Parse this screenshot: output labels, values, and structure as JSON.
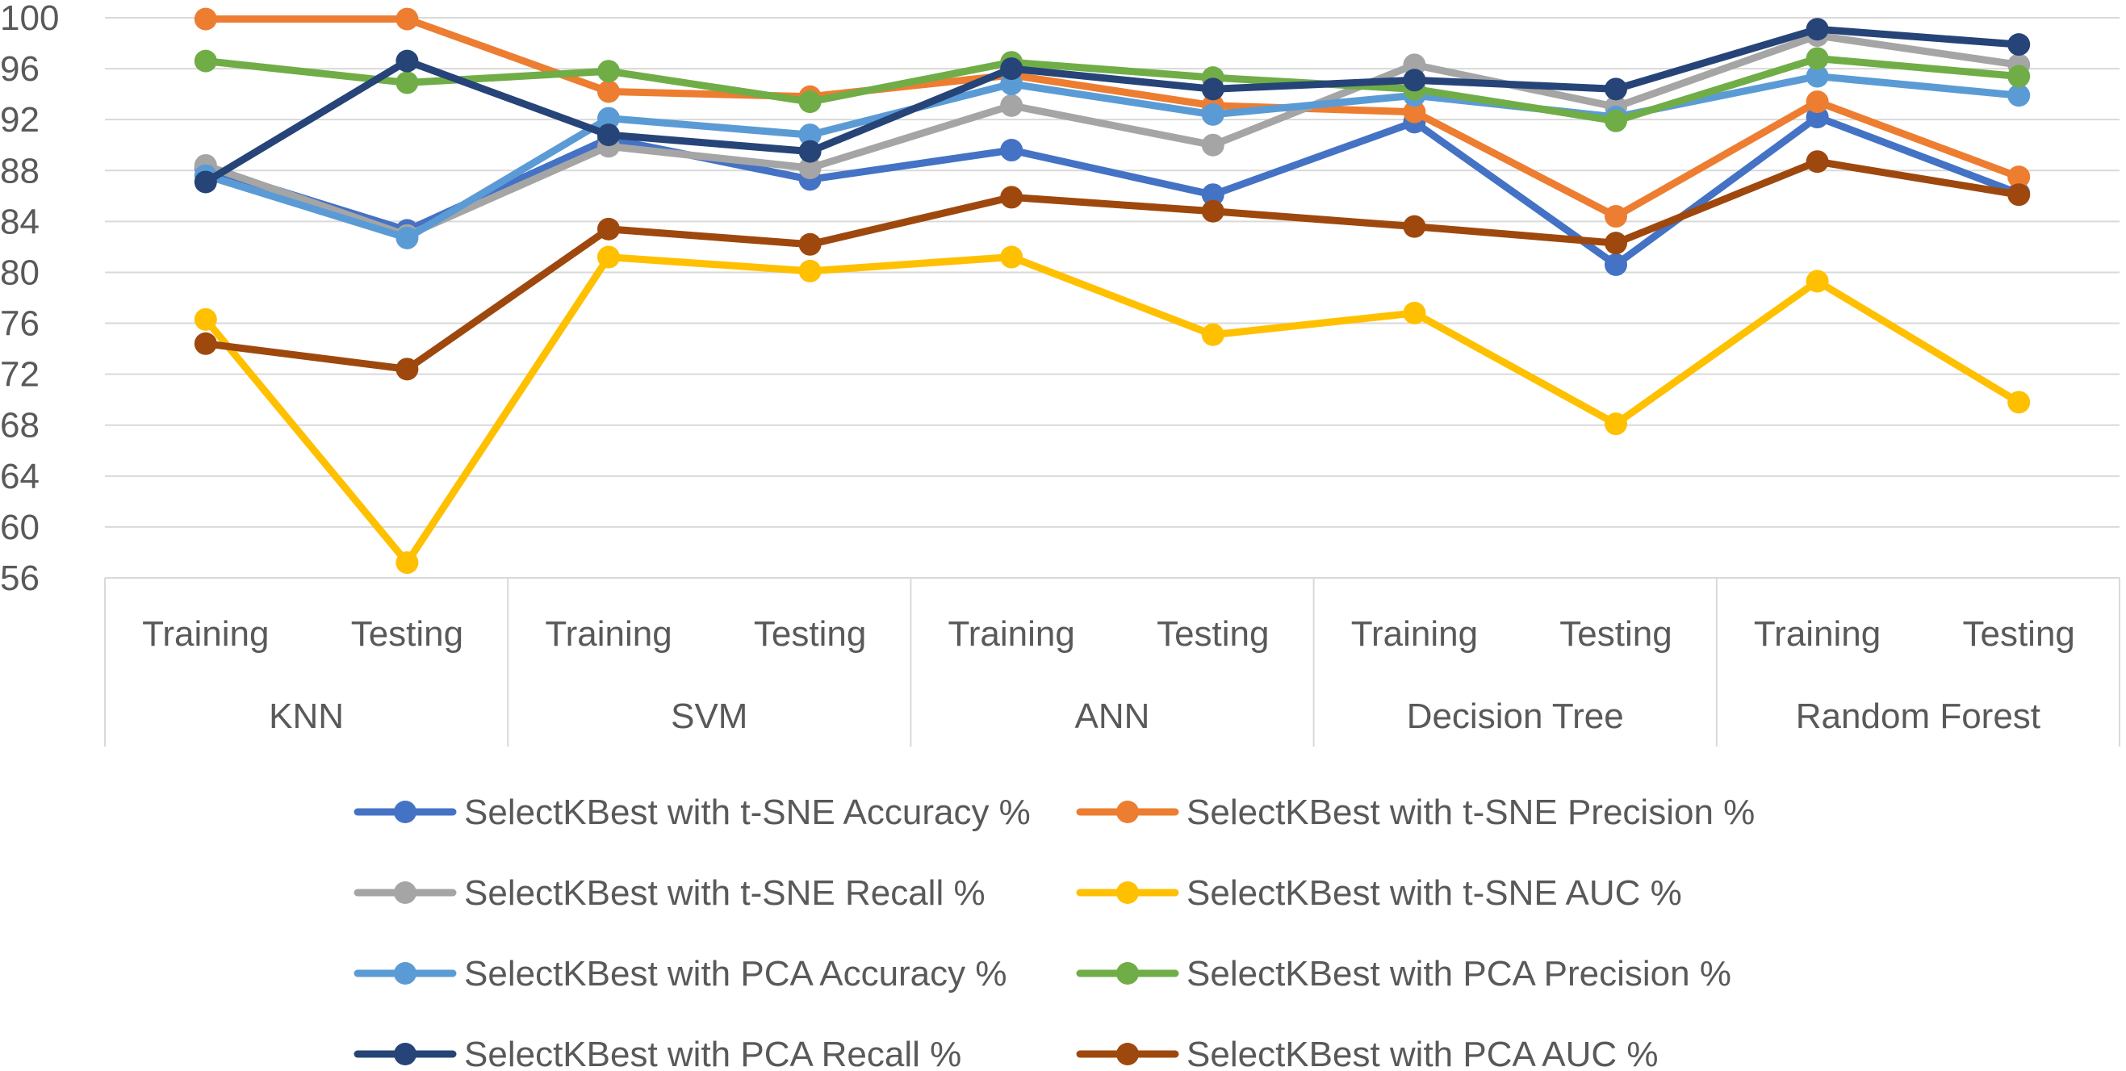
{
  "chart_data": {
    "type": "line",
    "title": "",
    "xlabel": "",
    "ylabel": "",
    "ylim": [
      56,
      100
    ],
    "yticks": [
      56,
      60,
      64,
      68,
      72,
      76,
      80,
      84,
      88,
      92,
      96,
      100
    ],
    "grid": "horizontal",
    "legend_position": "bottom",
    "groups": [
      "KNN",
      "SVM",
      "ANN",
      "Decision Tree",
      "Random Forest"
    ],
    "subcategories": [
      "Training",
      "Testing"
    ],
    "series": [
      {
        "name": "SelectKBest with t-SNE Accuracy %",
        "color": "#4472c4",
        "values": [
          88.2,
          83.3,
          90.5,
          87.3,
          89.6,
          86.1,
          91.8,
          80.6,
          92.2,
          86.2
        ]
      },
      {
        "name": "SelectKBest with t-SNE Precision %",
        "color": "#ed7d31",
        "values": [
          99.9,
          99.9,
          94.2,
          93.8,
          95.5,
          93.1,
          92.6,
          84.4,
          93.4,
          87.5
        ]
      },
      {
        "name": "SelectKBest with t-SNE Recall %",
        "color": "#a5a5a5",
        "values": [
          88.4,
          82.9,
          89.9,
          88.2,
          93.1,
          90.0,
          96.3,
          93.0,
          98.6,
          96.3
        ]
      },
      {
        "name": "SelectKBest with t-SNE AUC %",
        "color": "#ffc000",
        "values": [
          76.3,
          57.2,
          81.2,
          80.1,
          81.2,
          75.1,
          76.8,
          68.1,
          79.3,
          69.8
        ]
      },
      {
        "name": "SelectKBest with PCA Accuracy %",
        "color": "#5b9bd5",
        "values": [
          87.6,
          82.7,
          92.1,
          90.8,
          94.8,
          92.4,
          93.9,
          92.2,
          95.4,
          93.9
        ]
      },
      {
        "name": "SelectKBest with PCA Precision %",
        "color": "#70ad47",
        "values": [
          96.6,
          94.9,
          95.8,
          93.4,
          96.5,
          95.3,
          94.4,
          91.9,
          96.8,
          95.4
        ]
      },
      {
        "name": "SelectKBest with PCA Recall %",
        "color": "#264478",
        "values": [
          87.1,
          96.6,
          90.8,
          89.5,
          96.0,
          94.4,
          95.1,
          94.4,
          99.1,
          97.9
        ]
      },
      {
        "name": "SelectKBest with PCA AUC %",
        "color": "#9e480e",
        "values": [
          74.4,
          72.4,
          83.4,
          82.2,
          85.9,
          84.8,
          83.6,
          82.3,
          88.7,
          86.1
        ]
      }
    ]
  }
}
